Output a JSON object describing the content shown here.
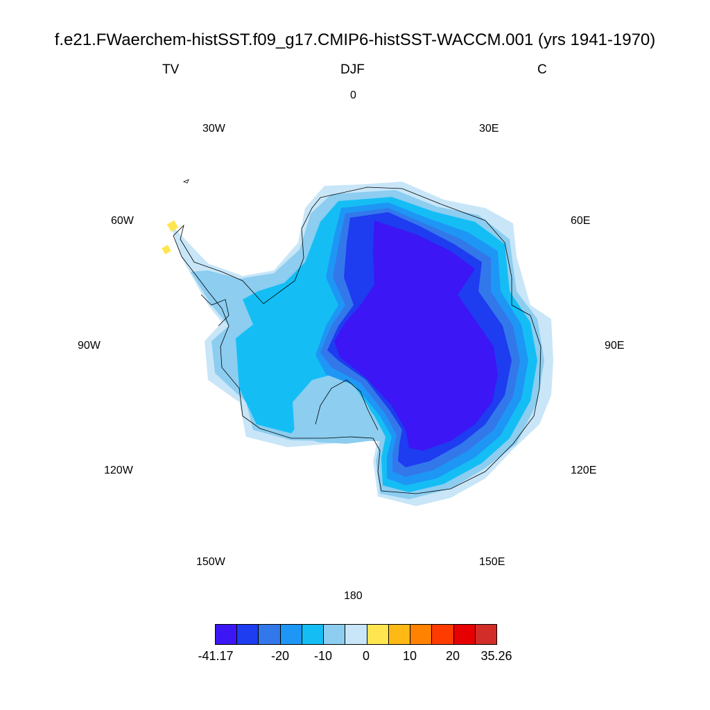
{
  "header": {
    "title": "f.e21.FWaerchem-histSST.f09_g17.CMIP6-histSST-WACCM.001 (yrs 1941-1970)",
    "variable": "TV",
    "season": "DJF",
    "units": "C"
  },
  "map": {
    "projection": "south polar stereographic",
    "region": "Antarctica",
    "longitude_labels": [
      "0",
      "30E",
      "60E",
      "90E",
      "120E",
      "150E",
      "180",
      "150W",
      "120W",
      "90W",
      "60W",
      "30W"
    ]
  },
  "colorbar": {
    "colors": [
      "#3c16f5",
      "#1e3cf0",
      "#3278eb",
      "#1e96f5",
      "#14bef5",
      "#8ccdf0",
      "#c8e6f8",
      "#ffe650",
      "#ffb914",
      "#ff8200",
      "#ff3c00",
      "#e60000",
      "#d22d28"
    ],
    "labels": [
      "-41.17",
      "-20",
      "-10",
      "0",
      "10",
      "20",
      "35.26"
    ]
  },
  "legend_levels": {
    "min": -41.17,
    "max": 35.26,
    "interior_ticks": [
      -20,
      -10,
      0,
      10,
      20
    ]
  }
}
